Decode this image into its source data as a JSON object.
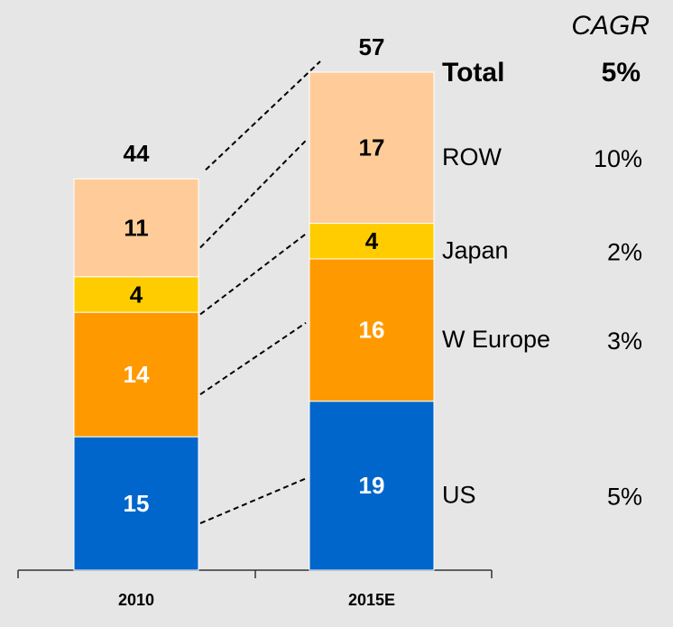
{
  "chart_data": {
    "type": "stacked_bar",
    "categories": [
      "2010",
      "2015E"
    ],
    "series": [
      {
        "name": "US",
        "color": "#0066cc",
        "label_color": "#ffffff",
        "values": [
          15,
          19
        ],
        "cagr": "5%"
      },
      {
        "name": "W Europe",
        "color": "#ff9900",
        "label_color": "#ffffff",
        "values": [
          14,
          16
        ],
        "cagr": "3%"
      },
      {
        "name": "Japan",
        "color": "#ffcc00",
        "label_color": "#000000",
        "values": [
          4,
          4
        ],
        "cagr": "2%"
      },
      {
        "name": "ROW",
        "color": "#ffcc99",
        "label_color": "#000000",
        "values": [
          11,
          17
        ],
        "cagr": "10%"
      }
    ],
    "totals": [
      44,
      57
    ],
    "cagr_header": "CAGR",
    "total_label": "Total",
    "total_cagr": "5%"
  }
}
